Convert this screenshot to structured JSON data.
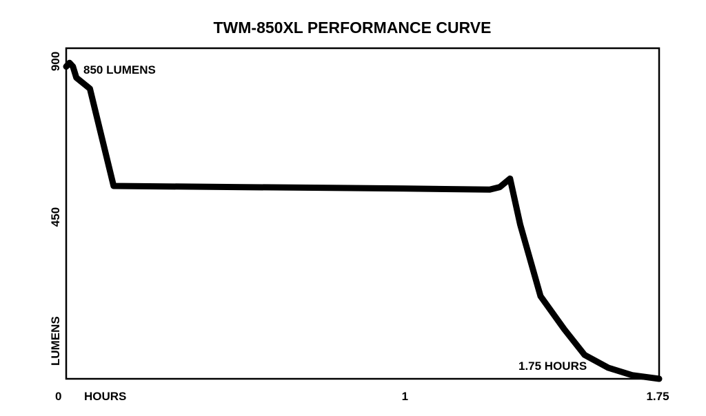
{
  "chart_data": {
    "type": "line",
    "title": "TWM-850XL PERFORMANCE CURVE",
    "xlabel": "HOURS",
    "ylabel": "LUMENS",
    "x_ticks": [
      {
        "value": 0,
        "label": "0"
      },
      {
        "value": 1,
        "label": "1"
      },
      {
        "value": 1.75,
        "label": "1.75"
      }
    ],
    "y_ticks": [
      {
        "value": 450,
        "label": "450"
      },
      {
        "value": 900,
        "label": "900"
      }
    ],
    "xlim": [
      0,
      1.75
    ],
    "ylim": [
      0,
      900
    ],
    "grid": false,
    "annotations": [
      {
        "text": "850 LUMENS",
        "x": 0.04,
        "y": 850
      },
      {
        "text": "1.75 HOURS",
        "x": 1.5,
        "y": 40
      }
    ],
    "series": [
      {
        "x": [
          0,
          0.01,
          0.02,
          0.03,
          0.07,
          0.14,
          0.5,
          1.0,
          1.25,
          1.28,
          1.31,
          1.34,
          1.4,
          1.47,
          1.53,
          1.6,
          1.67,
          1.75
        ],
        "y": [
          850,
          860,
          850,
          820,
          790,
          525,
          522,
          518,
          515,
          522,
          545,
          420,
          225,
          135,
          65,
          30,
          10,
          0
        ]
      }
    ],
    "color": "#000000"
  }
}
